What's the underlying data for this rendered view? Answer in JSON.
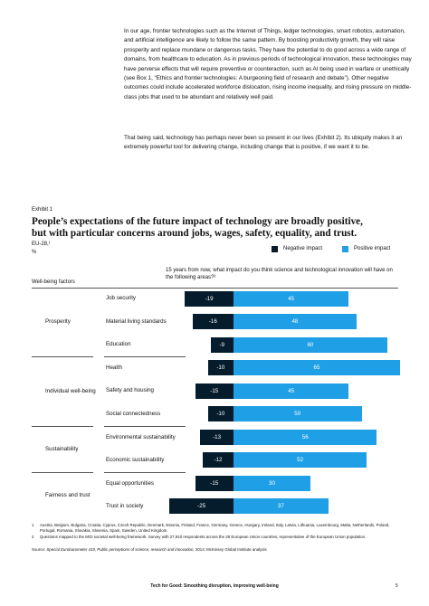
{
  "body": {
    "paragraphs": [
      "In our age, frontier technologies such as the Internet of Things, ledger technologies, smart robotics, automation, and artificial intelligence are likely to follow the same pattern. By boosting productivity growth, they will raise prosperity and replace mundane or dangerous tasks. They have the potential to do good across a wide range of domains, from healthcare to education. As in previous periods of technological innovation, these technologies may have perverse effects that will require preventive or counteraction, such as AI being used in warfare or unethically (see Box 1, “Ethics and frontier technologies: A burgeoning field of research and debate”). Other negative outcomes could include accelerated workforce dislocation, rising income inequality, and rising pressure on middle-class jobs that used to be abundant and relatively well paid.",
      "That being said, technology has perhaps never been so present in our lives (Exhibit 2). Its ubiquity makes it an extremely powerful tool for delivering change, including change that is positive, if we want it to be."
    ]
  },
  "exhibit": {
    "label": "Exhibit 1"
  },
  "chart_data": {
    "type": "diverging-bar",
    "title": "People’s expectations of the future impact of technology are broadly positive, but with particular concerns around jobs, wages, safety, equality, and trust.",
    "subtitle": "EU-28,¹",
    "unit": "%",
    "group_header": "Well-being factors",
    "question": "15 years from now, what impact do you think science and technological innovation will have on the following areas?²",
    "groups": [
      {
        "name": "Prosperity",
        "categories": [
          "Job security",
          "Material living standards",
          "Education"
        ]
      },
      {
        "name": "Individual well-being",
        "categories": [
          "Health",
          "Safety and housing",
          "Social connectedness"
        ]
      },
      {
        "name": "Sustainability",
        "categories": [
          "Environmental sustainability",
          "Economic sustainability"
        ]
      },
      {
        "name": "Fairness and trust",
        "categories": [
          "Equal opportunities",
          "Trust in society"
        ]
      }
    ],
    "series": [
      {
        "name": "Negative impact",
        "color": "#051c2c",
        "values": [
          -19,
          -16,
          -9,
          -10,
          -15,
          -10,
          -13,
          -12,
          -15,
          -25
        ]
      },
      {
        "name": "Positive impact",
        "color": "#1f9fe6",
        "values": [
          45,
          48,
          60,
          65,
          45,
          50,
          56,
          52,
          30,
          37
        ]
      }
    ]
  },
  "notes": {
    "footnotes": [
      {
        "mark": "1",
        "text": "Austria, Belgium, Bulgaria, Croatia, Cyprus, Czech Republic, Denmark, Estonia, Finland, France, Germany, Greece, Hungary, Ireland, Italy, Latvia, Lithuania, Luxembourg, Malta, Netherlands, Poland, Portugal, Romania, Slovakia, Slovenia, Spain, Sweden, United Kingdom."
      },
      {
        "mark": "2",
        "text": "Questions mapped to the MGI societal well-being framework. Survey with 27,910 respondents across the 28 European Union countries, representative of the European Union population."
      }
    ],
    "source_prefix": "Source:",
    "source_title": "Special Eurobarometer 419, Public perceptions of science, research and innovation,",
    "source_rest": "2014; McKinsey Global Institute analysis"
  },
  "footer": {
    "title": "Tech for Good: Smoothing disruption, improving well-being",
    "page": "5"
  }
}
